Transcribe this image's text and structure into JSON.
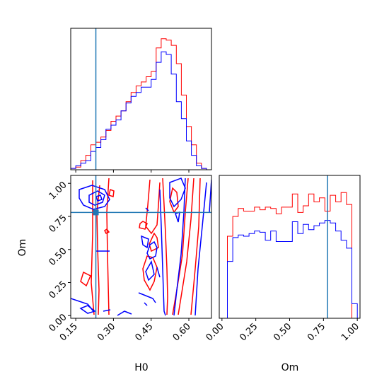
{
  "chart_data": {
    "type": "corner",
    "parameters": [
      "H0",
      "Om"
    ],
    "truths": {
      "H0": 0.23,
      "Om": 0.78
    },
    "colors": {
      "series_a": "#ff0000",
      "series_b": "#0000ff",
      "truth": "#1f77b4",
      "axes": "#000000"
    },
    "grid": false,
    "panels": [
      {
        "id": "hist-H0",
        "type": "histogram",
        "x_range": [
          0.13,
          0.69
        ],
        "y_range": [
          0,
          1.08
        ],
        "bin_edges": [
          0.13,
          0.15,
          0.17,
          0.19,
          0.21,
          0.23,
          0.25,
          0.27,
          0.29,
          0.31,
          0.33,
          0.35,
          0.37,
          0.39,
          0.41,
          0.43,
          0.45,
          0.47,
          0.49,
          0.51,
          0.53,
          0.55,
          0.57,
          0.59,
          0.61,
          0.63,
          0.65,
          0.67,
          0.69
        ],
        "series": [
          {
            "color": "red",
            "values": [
              0.01,
              0.02,
              0.07,
              0.11,
              0.19,
              0.21,
              0.25,
              0.3,
              0.37,
              0.41,
              0.45,
              0.52,
              0.59,
              0.64,
              0.67,
              0.71,
              0.75,
              0.93,
              1.0,
              0.99,
              0.95,
              0.81,
              0.57,
              0.33,
              0.19,
              0.05,
              0.01,
              0.0
            ]
          },
          {
            "color": "blue",
            "values": [
              0.01,
              0.03,
              0.05,
              0.07,
              0.14,
              0.17,
              0.23,
              0.31,
              0.34,
              0.38,
              0.45,
              0.51,
              0.56,
              0.59,
              0.63,
              0.63,
              0.69,
              0.82,
              0.9,
              0.88,
              0.73,
              0.52,
              0.39,
              0.22,
              0.11,
              0.03,
              0.01,
              0.0
            ]
          }
        ]
      },
      {
        "id": "hist-Om",
        "type": "histogram",
        "x_range": [
          -0.02,
          1.02
        ],
        "y_range": [
          0,
          1.08
        ],
        "bin_edges": [
          0.0,
          0.04,
          0.08,
          0.12,
          0.16,
          0.2,
          0.24,
          0.28,
          0.32,
          0.36,
          0.4,
          0.44,
          0.48,
          0.52,
          0.56,
          0.6,
          0.64,
          0.68,
          0.72,
          0.76,
          0.8,
          0.84,
          0.88,
          0.92,
          0.96,
          1.0
        ],
        "series": [
          {
            "color": "red",
            "values": [
              0.0,
              0.62,
              0.77,
              0.83,
              0.81,
              0.81,
              0.84,
              0.82,
              0.84,
              0.83,
              0.79,
              0.84,
              0.84,
              0.94,
              0.8,
              0.85,
              0.94,
              0.88,
              0.91,
              0.81,
              0.93,
              0.88,
              0.95,
              0.86,
              0.0
            ]
          },
          {
            "color": "blue",
            "values": [
              0.0,
              0.43,
              0.61,
              0.63,
              0.62,
              0.64,
              0.66,
              0.65,
              0.59,
              0.66,
              0.58,
              0.58,
              0.58,
              0.73,
              0.64,
              0.71,
              0.67,
              0.7,
              0.72,
              0.74,
              0.72,
              0.66,
              0.59,
              0.53,
              0.11
            ]
          }
        ]
      },
      {
        "id": "contour-H0-Om",
        "type": "contour",
        "x_range": [
          0.13,
          0.69
        ],
        "y_range": [
          -0.02,
          1.06
        ]
      }
    ],
    "axes": {
      "H0": {
        "label": "H0",
        "ticks": [
          0.15,
          0.3,
          0.45,
          0.6
        ],
        "tick_labels": [
          "0.15",
          "0.30",
          "0.45",
          "0.60"
        ]
      },
      "Om_y": {
        "label": "Om",
        "ticks": [
          0.0,
          0.25,
          0.5,
          0.75,
          1.0
        ],
        "tick_labels": [
          "0.00",
          "0.25",
          "0.50",
          "0.75",
          "1.00"
        ]
      },
      "Om_x": {
        "label": "Om",
        "ticks": [
          0.0,
          0.25,
          0.5,
          0.75,
          1.0
        ],
        "tick_labels": [
          "0.00",
          "0.25",
          "0.50",
          "0.75",
          "1.00"
        ]
      }
    }
  }
}
